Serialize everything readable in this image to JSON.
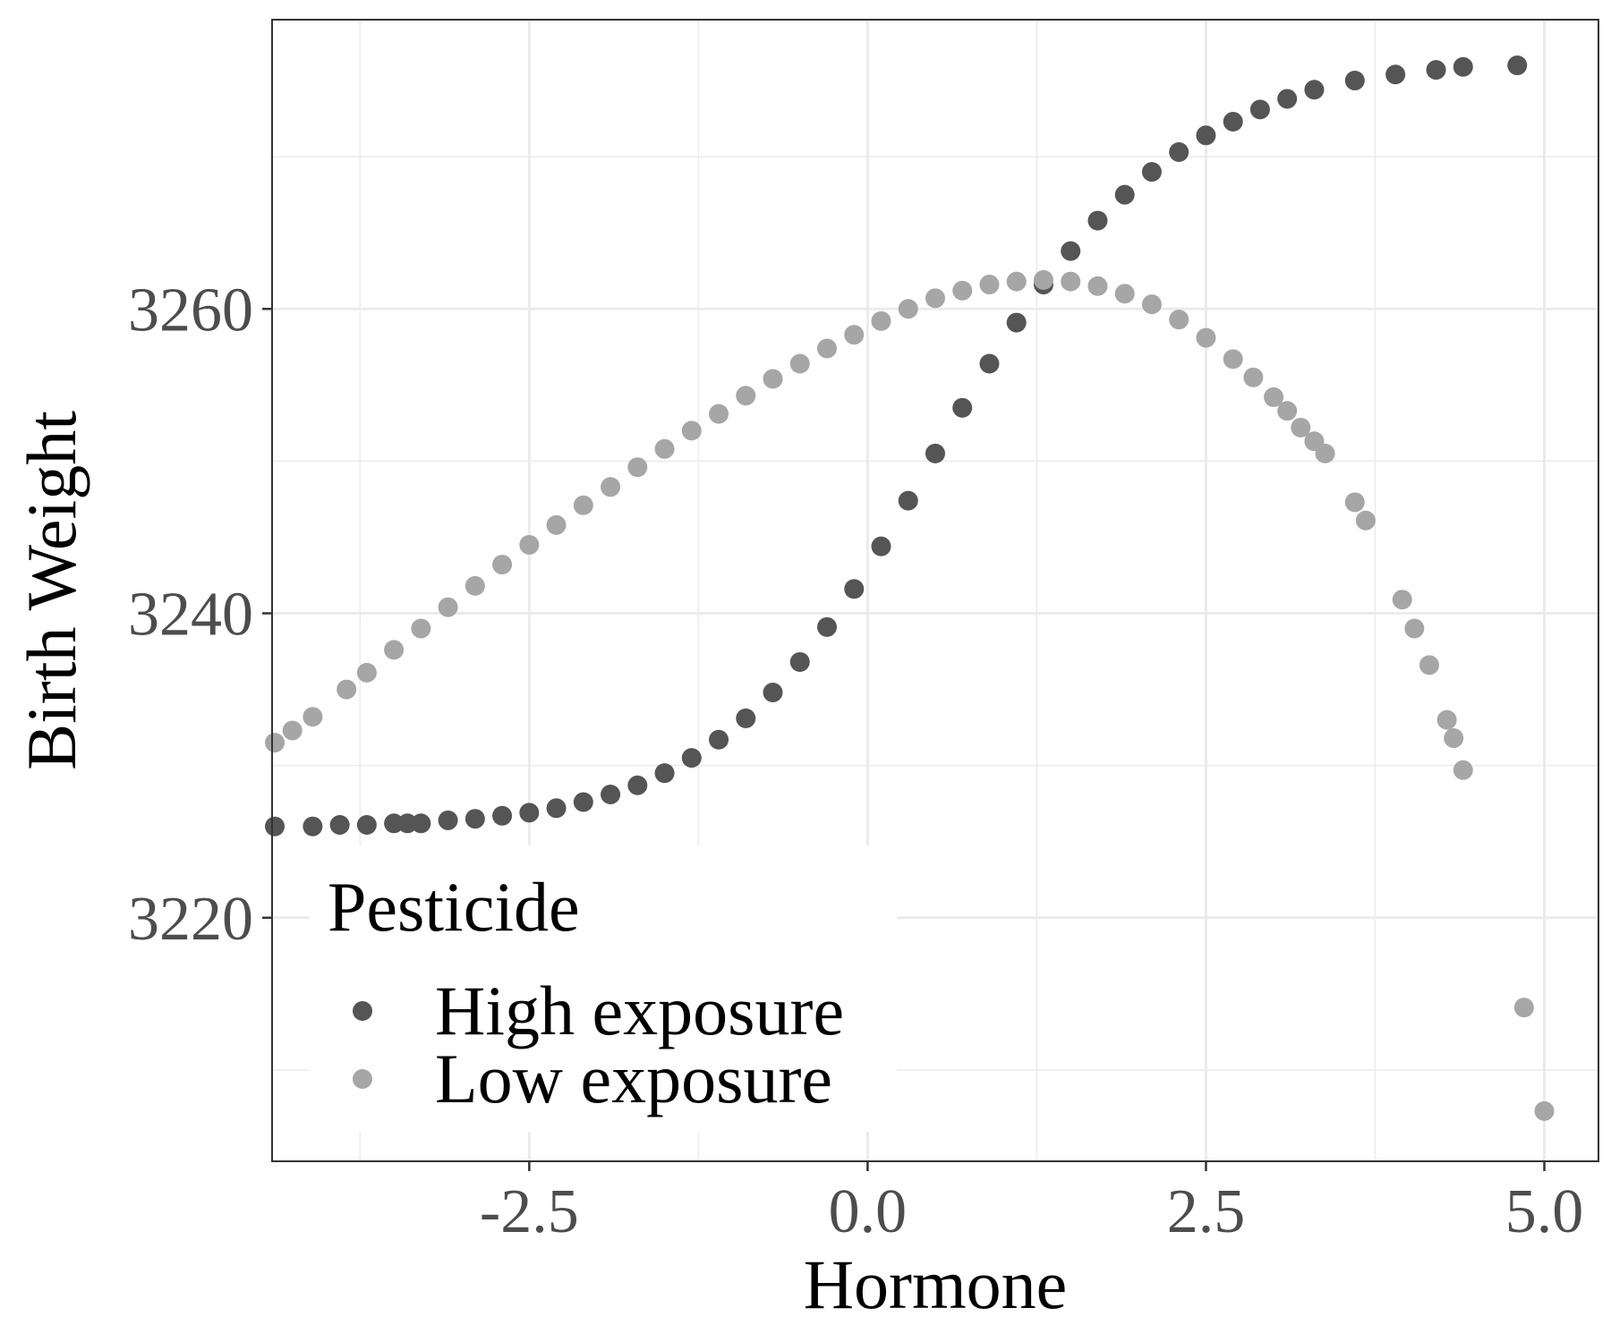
{
  "chart_data": {
    "type": "scatter",
    "title": "",
    "xlabel": "Hormone",
    "ylabel": "Birth Weight",
    "xlim": [
      -4.4,
      5.4
    ],
    "ylim": [
      3204,
      3279
    ],
    "x_ticks": [
      {
        "value": -2.5,
        "label": "-2.5"
      },
      {
        "value": 0.0,
        "label": "0.0"
      },
      {
        "value": 2.5,
        "label": "2.5"
      },
      {
        "value": 5.0,
        "label": "5.0"
      }
    ],
    "x_minor_ticks": [
      -3.75,
      -1.25,
      1.25,
      3.75
    ],
    "y_ticks": [
      {
        "value": 3220,
        "label": "3220"
      },
      {
        "value": 3240,
        "label": "3240"
      },
      {
        "value": 3260,
        "label": "3260"
      }
    ],
    "y_minor_ticks": [
      3210,
      3230,
      3250,
      3270
    ],
    "grid": true,
    "legend": {
      "title": "Pesticide",
      "position": "bottom-left-inside"
    },
    "series": [
      {
        "name": "High exposure",
        "color": "#555555",
        "points": [
          [
            -4.38,
            3226.0
          ],
          [
            -4.1,
            3226.0
          ],
          [
            -3.9,
            3226.1
          ],
          [
            -3.7,
            3226.1
          ],
          [
            -3.5,
            3226.2
          ],
          [
            -3.4,
            3226.2
          ],
          [
            -3.3,
            3226.2
          ],
          [
            -3.1,
            3226.4
          ],
          [
            -2.9,
            3226.5
          ],
          [
            -2.7,
            3226.7
          ],
          [
            -2.5,
            3226.9
          ],
          [
            -2.3,
            3227.2
          ],
          [
            -2.1,
            3227.6
          ],
          [
            -1.9,
            3228.1
          ],
          [
            -1.7,
            3228.7
          ],
          [
            -1.5,
            3229.5
          ],
          [
            -1.3,
            3230.5
          ],
          [
            -1.1,
            3231.7
          ],
          [
            -0.9,
            3233.1
          ],
          [
            -0.7,
            3234.8
          ],
          [
            -0.5,
            3236.8
          ],
          [
            -0.3,
            3239.1
          ],
          [
            -0.1,
            3241.6
          ],
          [
            0.1,
            3244.4
          ],
          [
            0.3,
            3247.4
          ],
          [
            0.5,
            3250.5
          ],
          [
            0.7,
            3253.5
          ],
          [
            0.9,
            3256.4
          ],
          [
            1.1,
            3259.1
          ],
          [
            1.3,
            3261.6
          ],
          [
            1.5,
            3263.8
          ],
          [
            1.7,
            3265.8
          ],
          [
            1.9,
            3267.5
          ],
          [
            2.1,
            3269.0
          ],
          [
            2.3,
            3270.3
          ],
          [
            2.5,
            3271.4
          ],
          [
            2.7,
            3272.3
          ],
          [
            2.9,
            3273.1
          ],
          [
            3.1,
            3273.8
          ],
          [
            3.3,
            3274.4
          ],
          [
            3.6,
            3275.0
          ],
          [
            3.9,
            3275.4
          ],
          [
            4.2,
            3275.7
          ],
          [
            4.4,
            3275.9
          ],
          [
            4.8,
            3276.0
          ]
        ]
      },
      {
        "name": "Low exposure",
        "color": "#a6a6a6",
        "points": [
          [
            -4.38,
            3231.5
          ],
          [
            -4.25,
            3232.3
          ],
          [
            -4.1,
            3233.2
          ],
          [
            -3.85,
            3235.0
          ],
          [
            -3.7,
            3236.1
          ],
          [
            -3.5,
            3237.6
          ],
          [
            -3.3,
            3239.0
          ],
          [
            -3.1,
            3240.4
          ],
          [
            -2.9,
            3241.8
          ],
          [
            -2.7,
            3243.2
          ],
          [
            -2.5,
            3244.5
          ],
          [
            -2.3,
            3245.8
          ],
          [
            -2.1,
            3247.1
          ],
          [
            -1.9,
            3248.3
          ],
          [
            -1.7,
            3249.6
          ],
          [
            -1.5,
            3250.8
          ],
          [
            -1.3,
            3252.0
          ],
          [
            -1.1,
            3253.1
          ],
          [
            -0.9,
            3254.3
          ],
          [
            -0.7,
            3255.4
          ],
          [
            -0.5,
            3256.4
          ],
          [
            -0.3,
            3257.4
          ],
          [
            -0.1,
            3258.3
          ],
          [
            0.1,
            3259.2
          ],
          [
            0.3,
            3260.0
          ],
          [
            0.5,
            3260.7
          ],
          [
            0.7,
            3261.2
          ],
          [
            0.9,
            3261.6
          ],
          [
            1.1,
            3261.8
          ],
          [
            1.3,
            3261.9
          ],
          [
            1.5,
            3261.8
          ],
          [
            1.7,
            3261.5
          ],
          [
            1.9,
            3261.0
          ],
          [
            2.1,
            3260.3
          ],
          [
            2.3,
            3259.3
          ],
          [
            2.5,
            3258.1
          ],
          [
            2.7,
            3256.7
          ],
          [
            2.85,
            3255.5
          ],
          [
            3.0,
            3254.2
          ],
          [
            3.1,
            3253.3
          ],
          [
            3.2,
            3252.2
          ],
          [
            3.3,
            3251.3
          ],
          [
            3.38,
            3250.5
          ],
          [
            3.6,
            3247.3
          ],
          [
            3.68,
            3246.1
          ],
          [
            3.95,
            3240.9
          ],
          [
            4.04,
            3239.0
          ],
          [
            4.15,
            3236.6
          ],
          [
            4.28,
            3233.0
          ],
          [
            4.33,
            3231.8
          ],
          [
            4.4,
            3229.7
          ],
          [
            4.85,
            3214.1
          ],
          [
            5.0,
            3207.3
          ]
        ]
      }
    ]
  }
}
